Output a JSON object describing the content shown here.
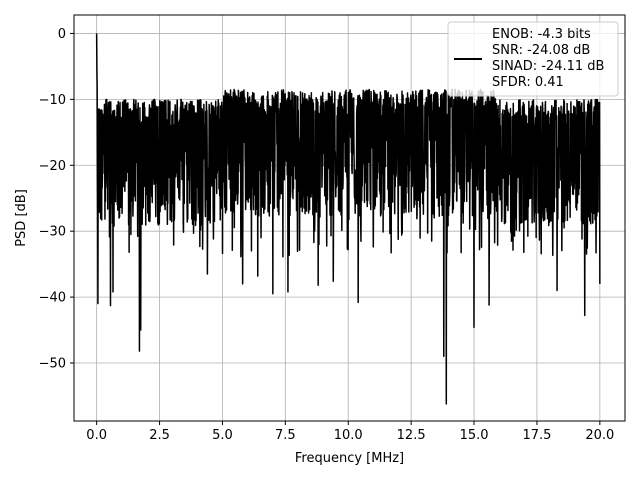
{
  "chart_data": {
    "type": "line",
    "title": "",
    "xlabel": "Frequency [MHz]",
    "ylabel": "PSD [dB]",
    "xlim": [
      -0.9,
      21.0
    ],
    "ylim": [
      -58.8,
      2.8
    ],
    "xticks": [
      0.0,
      2.5,
      5.0,
      7.5,
      10.0,
      12.5,
      15.0,
      17.5,
      20.0
    ],
    "xtick_labels": [
      "0.0",
      "2.5",
      "5.0",
      "7.5",
      "10.0",
      "12.5",
      "15.0",
      "17.5",
      "20.0"
    ],
    "yticks": [
      0,
      -10,
      -20,
      -30,
      -40,
      -50
    ],
    "ytick_labels": [
      "0",
      "−10",
      "−20",
      "−30",
      "−40",
      "−50"
    ],
    "grid": true,
    "legend_position": "top-right",
    "line_color": "#000000",
    "series": [
      {
        "name": "ENOB: -4.3 bits\nSNR: -24.08 dB\nSINAD: -24.11 dB\nSFDR: 0.41",
        "legend_lines": [
          "ENOB: -4.3 bits",
          "SNR: -24.08 dB",
          "SINAD: -24.11 dB",
          "SFDR: 0.41"
        ],
        "x_start": 0.0,
        "x_end": 20.0,
        "sample_count": 2000,
        "noise_floor_db": [
          -22,
          -10
        ],
        "peaks": [
          {
            "x": 0.0,
            "y": 0.0
          },
          {
            "x": 0.02,
            "y": -5.5
          },
          {
            "x": 0.05,
            "y": -8.0
          }
        ],
        "dips": [
          {
            "x": 0.05,
            "y": -41.0
          },
          {
            "x": 0.55,
            "y": -41.3
          },
          {
            "x": 0.65,
            "y": -39.2
          },
          {
            "x": 1.7,
            "y": -48.2
          },
          {
            "x": 1.75,
            "y": -45.0
          },
          {
            "x": 4.4,
            "y": -36.5
          },
          {
            "x": 5.8,
            "y": -38.0
          },
          {
            "x": 6.4,
            "y": -36.8
          },
          {
            "x": 7.0,
            "y": -39.5
          },
          {
            "x": 7.6,
            "y": -39.2
          },
          {
            "x": 8.8,
            "y": -38.2
          },
          {
            "x": 9.4,
            "y": -37.6
          },
          {
            "x": 10.4,
            "y": -40.8
          },
          {
            "x": 13.8,
            "y": -49.0
          },
          {
            "x": 13.9,
            "y": -56.2
          },
          {
            "x": 15.0,
            "y": -44.6
          },
          {
            "x": 15.6,
            "y": -41.2
          },
          {
            "x": 18.3,
            "y": -39.0
          },
          {
            "x": 19.4,
            "y": -42.8
          },
          {
            "x": 20.0,
            "y": -38.0
          }
        ]
      }
    ]
  }
}
